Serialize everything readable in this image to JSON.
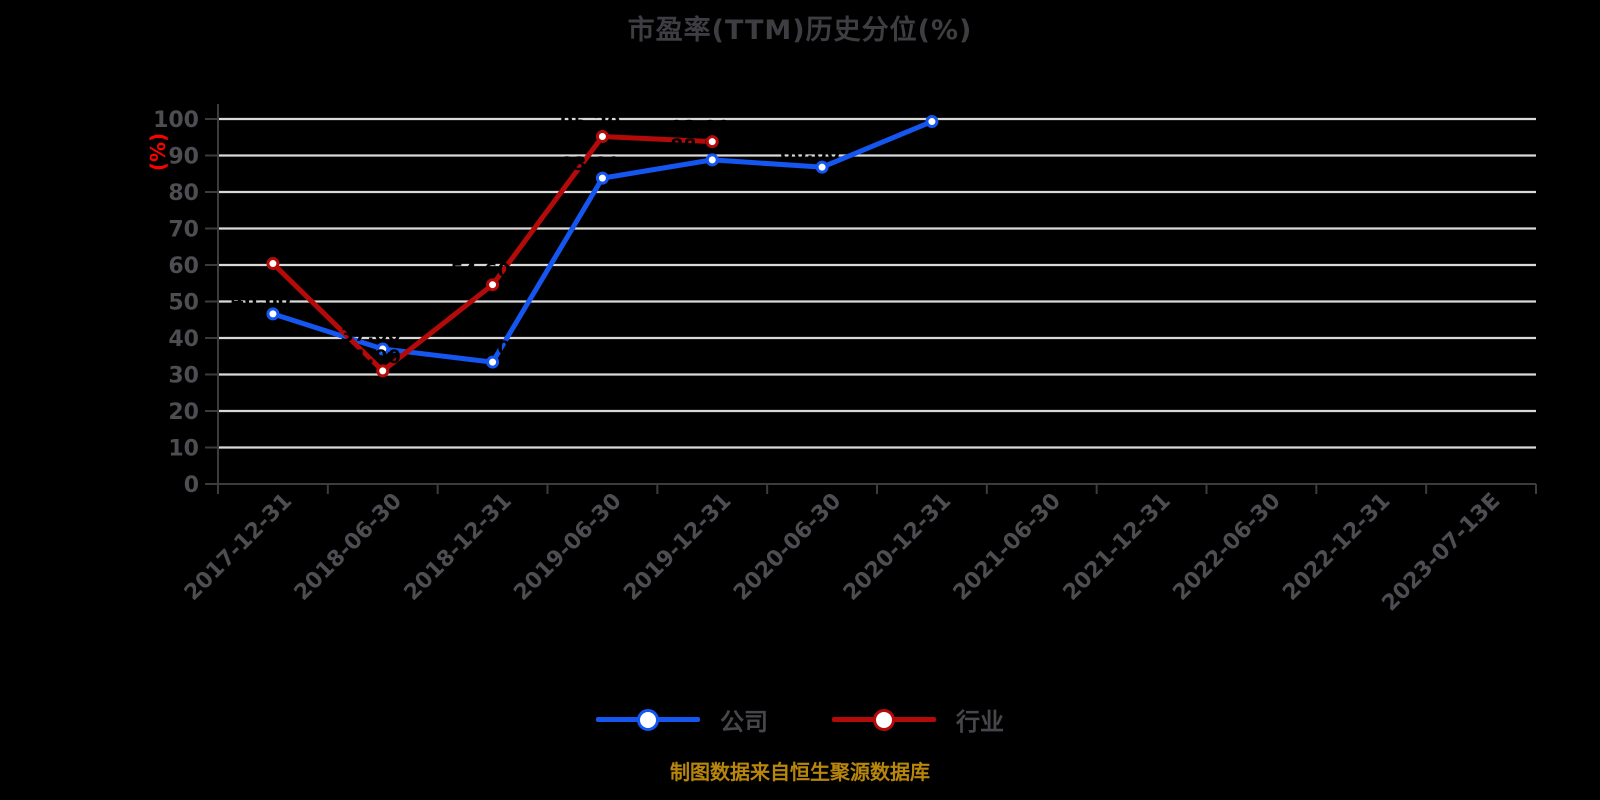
{
  "chart_data": {
    "type": "line",
    "title": "市盈率(TTM)历史分位(%)",
    "ylabel": "(%)",
    "caption": "制图数据来自恒生聚源数据库",
    "ylim": [
      0,
      100
    ],
    "y_tick_step": 10,
    "grid": true,
    "legend_position": "bottom",
    "categories": [
      "2017-12-31",
      "2018-06-30",
      "2018-12-31",
      "2019-06-30",
      "2019-12-31",
      "2020-06-30",
      "2020-12-31",
      "2021-06-30",
      "2021-12-31",
      "2022-06-30",
      "2022-12-31",
      "2023-07-13E"
    ],
    "series": [
      {
        "name": "公司",
        "color": "#1556f0",
        "marker_fill": "#ffffff",
        "values": [
          46.6,
          37.0,
          33.4,
          83.8,
          88.8,
          86.8,
          99.3
        ],
        "point_labels": [
          "46.60",
          "37.00",
          "33.40",
          "83.80",
          "88.80",
          "86.80",
          "99.30"
        ]
      },
      {
        "name": "行业",
        "color": "#b40a0a",
        "marker_fill": "#ffffff",
        "values": [
          60.4,
          31.0,
          54.6,
          95.2,
          93.8
        ],
        "point_labels": [
          "60.40",
          "31.00",
          "54.60",
          "95.20",
          "93.80"
        ]
      }
    ],
    "data_label_color": "#000000"
  },
  "style_colors": {
    "background": "#000000",
    "grid_line": "#d9d9d9",
    "axis_line": "#3c3c3c",
    "tick_label": "#4d4d52",
    "title": "#3e3e42",
    "legend_text": "#47474b",
    "caption": "#b8860b",
    "ylabel": "#ff0000"
  }
}
